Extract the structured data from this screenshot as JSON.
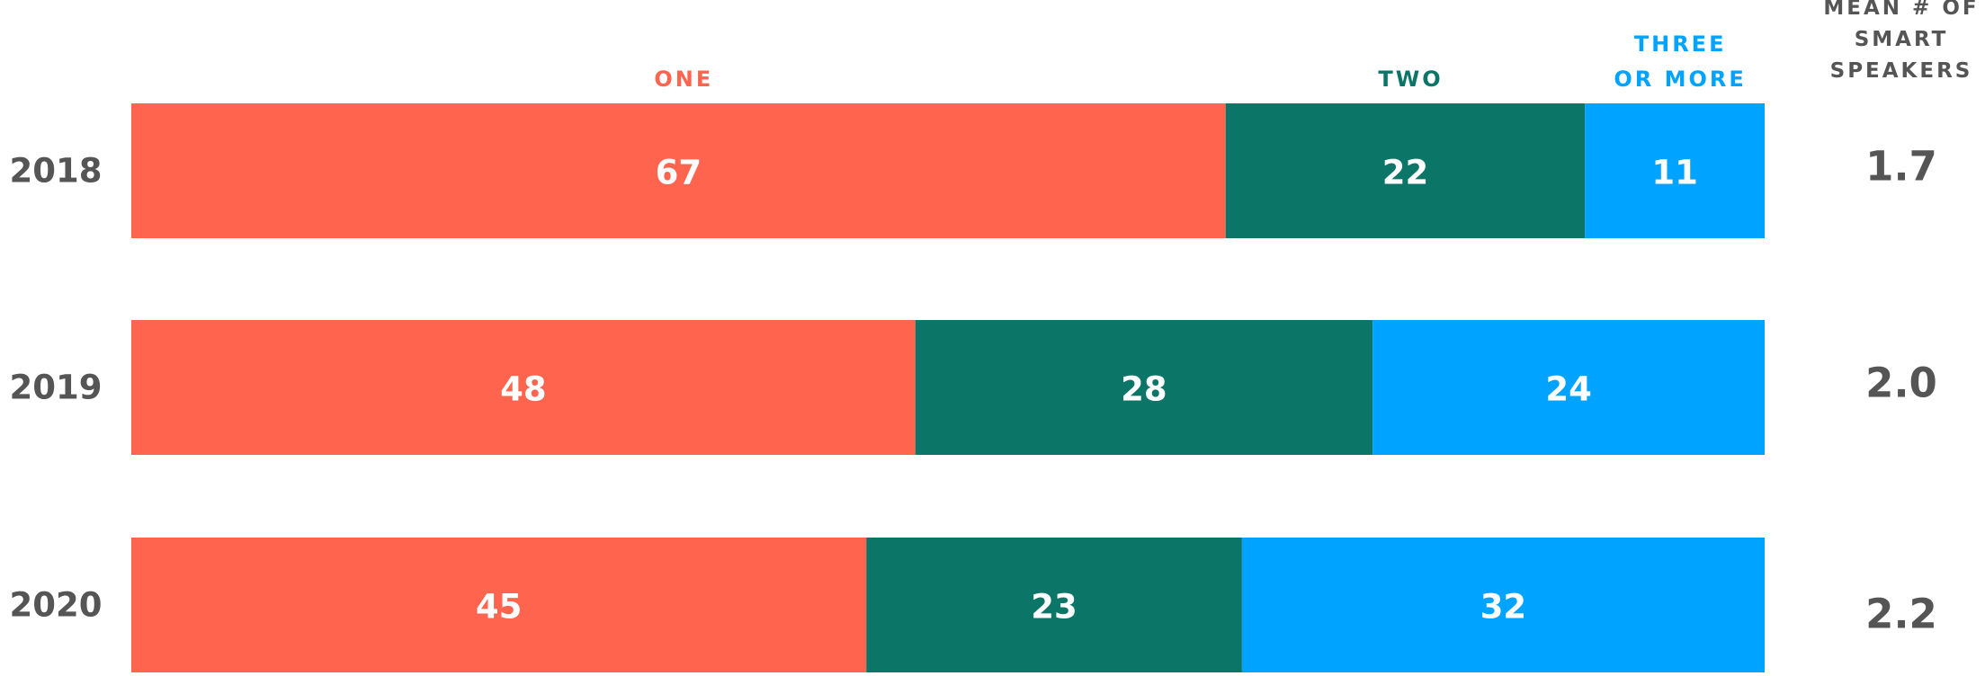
{
  "chart_data": {
    "type": "stacked-bar-horizontal",
    "categories": [
      "2018",
      "2019",
      "2020"
    ],
    "xlim": [
      0,
      100
    ],
    "series": [
      {
        "name": "ONE",
        "color": "#ff644e",
        "values": [
          67,
          48,
          45
        ]
      },
      {
        "name": "TWO",
        "color": "#0b7568",
        "values": [
          22,
          28,
          23
        ]
      },
      {
        "name": "THREE OR MORE",
        "color": "#00a3ff",
        "values": [
          11,
          24,
          32
        ]
      }
    ],
    "mean": {
      "title": "MEAN # OF SMART SPEAKERS",
      "values": [
        1.7,
        2.0,
        2.2
      ],
      "value_labels": [
        "1.7",
        "2.0",
        "2.2"
      ]
    }
  }
}
